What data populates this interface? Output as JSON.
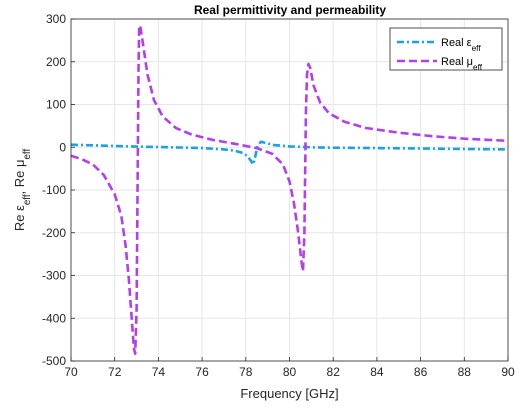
{
  "chart_data": {
    "type": "line",
    "title": "Real permittivity and permeability",
    "xlabel": "Frequency [GHz]",
    "ylabel": "Re ε_eff, Re μ_eff",
    "xlim": [
      70,
      90
    ],
    "ylim": [
      -500,
      300
    ],
    "xticks": [
      "70",
      "72",
      "74",
      "76",
      "78",
      "80",
      "82",
      "84",
      "86",
      "88",
      "90"
    ],
    "yticks": [
      "-500",
      "-400",
      "-300",
      "-200",
      "-100",
      "0",
      "100",
      "200",
      "300"
    ],
    "grid": true,
    "legend_position": "top-right",
    "series": [
      {
        "name": "Real ε_eff",
        "color": "#1aa0e8",
        "style": "dash-dot",
        "points": [
          [
            70,
            6
          ],
          [
            71,
            4.5
          ],
          [
            72,
            3
          ],
          [
            73,
            1.5
          ],
          [
            74,
            0.5
          ],
          [
            75,
            -0.5
          ],
          [
            76,
            -2
          ],
          [
            77,
            -5
          ],
          [
            77.5,
            -8
          ],
          [
            77.9,
            -14
          ],
          [
            78.1,
            -22
          ],
          [
            78.25,
            -33
          ],
          [
            78.35,
            -40
          ],
          [
            78.45,
            -18
          ],
          [
            78.55,
            5
          ],
          [
            78.7,
            13
          ],
          [
            78.9,
            10
          ],
          [
            79.3,
            5
          ],
          [
            80,
            2
          ],
          [
            81,
            0
          ],
          [
            82,
            -1
          ],
          [
            84,
            -2
          ],
          [
            86,
            -3
          ],
          [
            88,
            -4
          ],
          [
            90,
            -5
          ]
        ]
      },
      {
        "name": "Real μ_eff",
        "color": "#b23fee",
        "style": "dashed",
        "points": [
          [
            70,
            -20
          ],
          [
            70.5,
            -28
          ],
          [
            71,
            -40
          ],
          [
            71.5,
            -65
          ],
          [
            72,
            -110
          ],
          [
            72.3,
            -160
          ],
          [
            72.5,
            -230
          ],
          [
            72.65,
            -310
          ],
          [
            72.78,
            -400
          ],
          [
            72.88,
            -470
          ],
          [
            72.94,
            -483
          ],
          [
            73.0,
            -380
          ],
          [
            73.03,
            -200
          ],
          [
            73.06,
            0
          ],
          [
            73.09,
            180
          ],
          [
            73.12,
            285
          ],
          [
            73.18,
            280
          ],
          [
            73.3,
            240
          ],
          [
            73.5,
            170
          ],
          [
            73.8,
            110
          ],
          [
            74.2,
            72
          ],
          [
            74.8,
            45
          ],
          [
            75.5,
            30
          ],
          [
            76.5,
            17
          ],
          [
            77.5,
            8
          ],
          [
            78.5,
            -2
          ],
          [
            79.2,
            -15
          ],
          [
            79.7,
            -40
          ],
          [
            80.0,
            -80
          ],
          [
            80.2,
            -130
          ],
          [
            80.4,
            -200
          ],
          [
            80.55,
            -268
          ],
          [
            80.62,
            -290
          ],
          [
            80.68,
            -200
          ],
          [
            80.72,
            -50
          ],
          [
            80.75,
            80
          ],
          [
            80.8,
            170
          ],
          [
            80.87,
            195
          ],
          [
            80.95,
            185
          ],
          [
            81.1,
            145
          ],
          [
            81.4,
            105
          ],
          [
            81.8,
            80
          ],
          [
            82.5,
            60
          ],
          [
            83.5,
            45
          ],
          [
            85,
            34
          ],
          [
            86.5,
            26
          ],
          [
            88,
            20
          ],
          [
            90,
            15
          ]
        ]
      }
    ]
  }
}
